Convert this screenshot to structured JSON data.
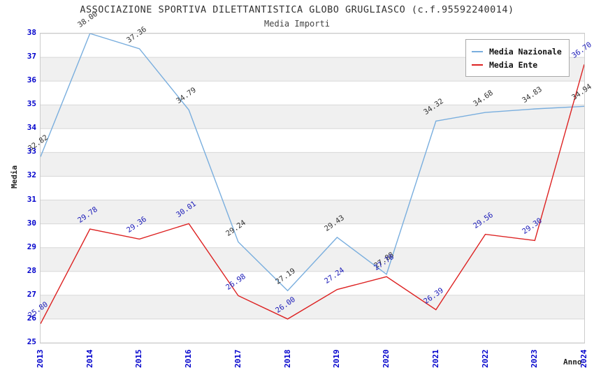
{
  "header": {
    "title": "ASSOCIAZIONE SPORTIVA DILETTANTISTICA GLOBO GRUGLIASCO (c.f.95592240014)",
    "subtitle": "Media Importi"
  },
  "legend": {
    "items": [
      {
        "label": "Media Nazionale",
        "color": "#79aede"
      },
      {
        "label": "Media Ente",
        "color": "#dd2222"
      }
    ]
  },
  "axes": {
    "y_title": "Media",
    "x_title": "Anno",
    "y_ticks": [
      "38",
      "37",
      "36",
      "35",
      "34",
      "33",
      "32",
      "31",
      "30",
      "29",
      "28",
      "27",
      "26",
      "25"
    ],
    "x_ticks": [
      "2013",
      "2014",
      "2015",
      "2016",
      "2017",
      "2018",
      "2019",
      "2020",
      "2021",
      "2022",
      "2023",
      "2024"
    ],
    "tick_color": "#0000cc"
  },
  "chart_data": {
    "type": "line",
    "title": "ASSOCIAZIONE SPORTIVA DILETTANTISTICA GLOBO GRUGLIASCO (c.f.95592240014)",
    "subtitle": "Media Importi",
    "xlabel": "Anno",
    "ylabel": "Media",
    "x": [
      2013,
      2014,
      2015,
      2016,
      2017,
      2018,
      2019,
      2020,
      2021,
      2022,
      2023,
      2024
    ],
    "series": [
      {
        "name": "Media Nazionale",
        "color": "#79aede",
        "label_color": "#333333",
        "values": [
          32.82,
          38.0,
          37.36,
          34.79,
          29.24,
          27.19,
          29.43,
          27.88,
          34.32,
          34.68,
          34.83,
          34.94
        ]
      },
      {
        "name": "Media Ente",
        "color": "#dd2222",
        "label_color": "#1a1ab8",
        "values": [
          25.8,
          29.78,
          29.36,
          30.01,
          26.98,
          26.0,
          27.24,
          27.78,
          26.39,
          29.56,
          29.3,
          36.7
        ]
      }
    ],
    "ylim": [
      25,
      38
    ],
    "ytick_step": 1,
    "grid": true,
    "legend_position": "top-right",
    "band_colors": [
      "#ffffff",
      "#f0f0f0"
    ],
    "gridline_color": "#d8d8d8",
    "tick_label_color": "#0000cc"
  }
}
